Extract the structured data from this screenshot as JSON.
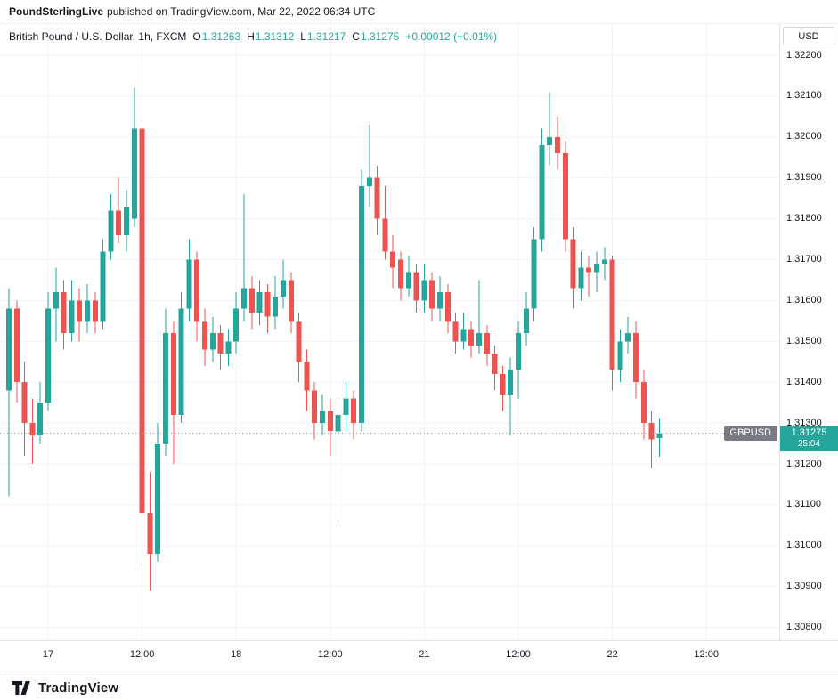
{
  "header": {
    "publisher": "PoundSterlingLive",
    "publish_info": "published on TradingView.com, Mar 22, 2022 06:34 UTC"
  },
  "legend": {
    "symbol_title": "British Pound / U.S. Dollar, 1h, FXCM",
    "ohlc": [
      {
        "label": "O",
        "value": "1.31263"
      },
      {
        "label": "H",
        "value": "1.31312"
      },
      {
        "label": "L",
        "value": "1.31217"
      },
      {
        "label": "C",
        "value": "1.31275"
      }
    ],
    "change": "+0.00012 (+0.01%)"
  },
  "price_axis": {
    "currency_button": "USD",
    "labels": [
      "1.32200",
      "1.32100",
      "1.32000",
      "1.31900",
      "1.31800",
      "1.31700",
      "1.31600",
      "1.31500",
      "1.31400",
      "1.31300",
      "1.31200",
      "1.31100",
      "1.31000",
      "1.30900",
      "1.30800"
    ]
  },
  "price_line": {
    "symbol_badge": "GBPUSD",
    "price": "1.31275",
    "countdown": "25:04"
  },
  "footer": {
    "brand": "TradingView"
  },
  "colors": {
    "up": "#26a69a",
    "down": "#ef5350",
    "grid": "#f0f3fa",
    "price_line": "#9598a1",
    "badge_bg": "#26a69a",
    "symbol_badge_bg": "#787b86"
  },
  "chart_data": {
    "type": "candlestick",
    "title": "British Pound / U.S. Dollar",
    "symbol": "GBPUSD",
    "interval": "1h",
    "exchange": "FXCM",
    "current_price": 1.31275,
    "countdown": "25:04",
    "y_axis": {
      "min": 1.308,
      "max": 1.322,
      "tick_step": 0.001,
      "currency": "USD"
    },
    "x_ticks": [
      {
        "i": 5,
        "label": "17"
      },
      {
        "i": 17,
        "label": "12:00"
      },
      {
        "i": 29,
        "label": "18"
      },
      {
        "i": 41,
        "label": "12:00"
      },
      {
        "i": 53,
        "label": "21"
      },
      {
        "i": 65,
        "label": "12:00"
      },
      {
        "i": 77,
        "label": "22"
      },
      {
        "i": 89,
        "label": "12:00"
      }
    ],
    "candle_columns": [
      "open",
      "high",
      "low",
      "close"
    ],
    "candles": [
      [
        1.3138,
        1.3163,
        1.3112,
        1.3158
      ],
      [
        1.3158,
        1.316,
        1.3135,
        1.314
      ],
      [
        1.314,
        1.3145,
        1.3122,
        1.313
      ],
      [
        1.313,
        1.3136,
        1.312,
        1.3127
      ],
      [
        1.3127,
        1.314,
        1.3125,
        1.3135
      ],
      [
        1.3135,
        1.3162,
        1.3133,
        1.3158
      ],
      [
        1.3158,
        1.3168,
        1.315,
        1.3162
      ],
      [
        1.3162,
        1.3165,
        1.3148,
        1.3152
      ],
      [
        1.3152,
        1.3165,
        1.315,
        1.316
      ],
      [
        1.316,
        1.3163,
        1.315,
        1.3155
      ],
      [
        1.3155,
        1.3164,
        1.3152,
        1.316
      ],
      [
        1.316,
        1.3162,
        1.3152,
        1.3155
      ],
      [
        1.3155,
        1.3175,
        1.3153,
        1.3172
      ],
      [
        1.3172,
        1.3186,
        1.317,
        1.3182
      ],
      [
        1.3182,
        1.319,
        1.3174,
        1.3176
      ],
      [
        1.3176,
        1.3187,
        1.3172,
        1.3183
      ],
      [
        1.318,
        1.3212,
        1.3178,
        1.3202
      ],
      [
        1.3202,
        1.3204,
        1.3095,
        1.3108
      ],
      [
        1.3108,
        1.3118,
        1.3089,
        1.3098
      ],
      [
        1.3098,
        1.313,
        1.3096,
        1.3125
      ],
      [
        1.3125,
        1.3158,
        1.3122,
        1.3152
      ],
      [
        1.3152,
        1.3155,
        1.312,
        1.3132
      ],
      [
        1.3132,
        1.3162,
        1.313,
        1.3158
      ],
      [
        1.3158,
        1.3175,
        1.3155,
        1.317
      ],
      [
        1.317,
        1.3172,
        1.315,
        1.3155
      ],
      [
        1.3155,
        1.3158,
        1.3144,
        1.3148
      ],
      [
        1.3148,
        1.3156,
        1.3145,
        1.3152
      ],
      [
        1.3152,
        1.3154,
        1.3143,
        1.3147
      ],
      [
        1.3147,
        1.3153,
        1.3144,
        1.315
      ],
      [
        1.315,
        1.3162,
        1.3147,
        1.3158
      ],
      [
        1.3158,
        1.3186,
        1.3155,
        1.3163
      ],
      [
        1.3163,
        1.3166,
        1.3153,
        1.3157
      ],
      [
        1.3157,
        1.3165,
        1.3154,
        1.3162
      ],
      [
        1.3162,
        1.3164,
        1.3152,
        1.3156
      ],
      [
        1.3156,
        1.3166,
        1.3153,
        1.3161
      ],
      [
        1.3161,
        1.317,
        1.3158,
        1.3165
      ],
      [
        1.3165,
        1.3167,
        1.3152,
        1.3155
      ],
      [
        1.3155,
        1.3157,
        1.314,
        1.3145
      ],
      [
        1.3145,
        1.3148,
        1.3133,
        1.3138
      ],
      [
        1.3138,
        1.314,
        1.3126,
        1.313
      ],
      [
        1.313,
        1.3137,
        1.3127,
        1.3133
      ],
      [
        1.3133,
        1.3136,
        1.3122,
        1.3128
      ],
      [
        1.3128,
        1.3136,
        1.3105,
        1.3132
      ],
      [
        1.3132,
        1.314,
        1.3128,
        1.3136
      ],
      [
        1.3136,
        1.3138,
        1.3126,
        1.313
      ],
      [
        1.313,
        1.3192,
        1.3128,
        1.3188
      ],
      [
        1.3188,
        1.3203,
        1.3183,
        1.319
      ],
      [
        1.319,
        1.3193,
        1.3176,
        1.318
      ],
      [
        1.318,
        1.3188,
        1.317,
        1.3172
      ],
      [
        1.3172,
        1.3176,
        1.3163,
        1.3168
      ],
      [
        1.317,
        1.3172,
        1.316,
        1.3163
      ],
      [
        1.3163,
        1.3171,
        1.3161,
        1.3167
      ],
      [
        1.3167,
        1.3169,
        1.3157,
        1.316
      ],
      [
        1.316,
        1.3169,
        1.3157,
        1.3165
      ],
      [
        1.3165,
        1.3167,
        1.3155,
        1.3158
      ],
      [
        1.3158,
        1.3166,
        1.3155,
        1.3162
      ],
      [
        1.3162,
        1.3164,
        1.3152,
        1.3155
      ],
      [
        1.3155,
        1.3157,
        1.3147,
        1.315
      ],
      [
        1.315,
        1.3157,
        1.3148,
        1.3153
      ],
      [
        1.3153,
        1.3155,
        1.3146,
        1.3149
      ],
      [
        1.3149,
        1.3165,
        1.3147,
        1.3152
      ],
      [
        1.3152,
        1.3154,
        1.3144,
        1.3147
      ],
      [
        1.3147,
        1.3149,
        1.3138,
        1.3142
      ],
      [
        1.3142,
        1.3144,
        1.3133,
        1.3137
      ],
      [
        1.3137,
        1.3146,
        1.3127,
        1.3143
      ],
      [
        1.3143,
        1.3155,
        1.3136,
        1.3152
      ],
      [
        1.3152,
        1.3162,
        1.3149,
        1.3158
      ],
      [
        1.3158,
        1.3178,
        1.3155,
        1.3175
      ],
      [
        1.3175,
        1.3202,
        1.3172,
        1.3198
      ],
      [
        1.3198,
        1.3211,
        1.3193,
        1.32
      ],
      [
        1.32,
        1.3205,
        1.3192,
        1.3196
      ],
      [
        1.3196,
        1.3199,
        1.3172,
        1.3175
      ],
      [
        1.3175,
        1.3178,
        1.3158,
        1.3163
      ],
      [
        1.3163,
        1.3172,
        1.316,
        1.3168
      ],
      [
        1.3168,
        1.3171,
        1.3161,
        1.3167
      ],
      [
        1.3167,
        1.3172,
        1.3162,
        1.3169
      ],
      [
        1.3169,
        1.3173,
        1.3165,
        1.317
      ],
      [
        1.317,
        1.3171,
        1.3138,
        1.3143
      ],
      [
        1.3143,
        1.3153,
        1.314,
        1.315
      ],
      [
        1.315,
        1.3156,
        1.3147,
        1.3152
      ],
      [
        1.3152,
        1.3155,
        1.3136,
        1.314
      ],
      [
        1.314,
        1.3143,
        1.3126,
        1.313
      ],
      [
        1.313,
        1.3133,
        1.3119,
        1.3126
      ],
      [
        1.31263,
        1.31312,
        1.31217,
        1.31275
      ]
    ]
  }
}
